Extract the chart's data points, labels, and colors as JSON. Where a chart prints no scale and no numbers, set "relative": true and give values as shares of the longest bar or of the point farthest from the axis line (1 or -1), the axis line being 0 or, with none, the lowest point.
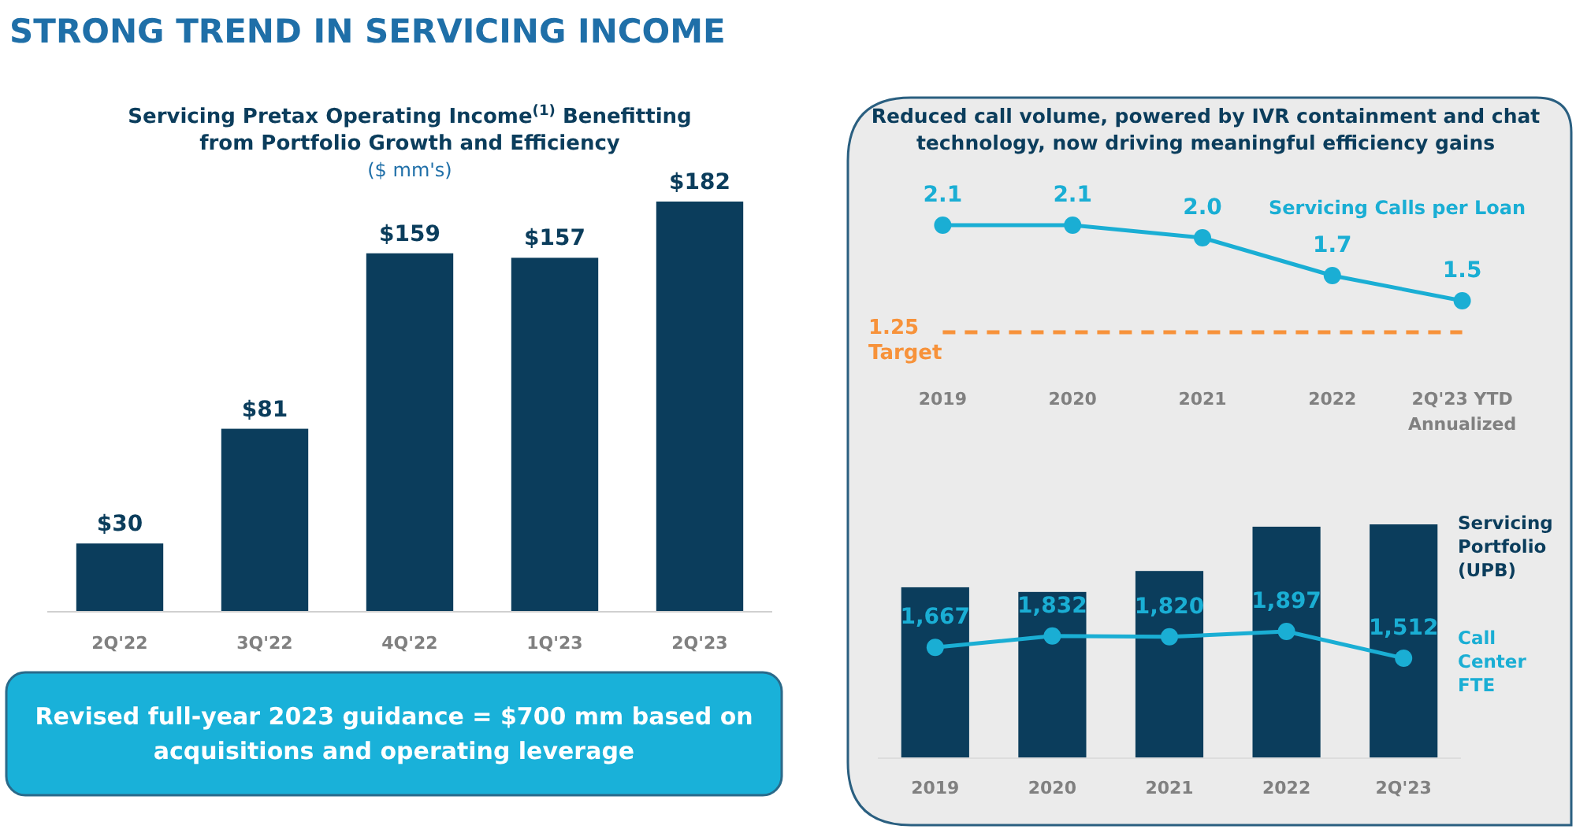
{
  "chart_data": [
    {
      "type": "bar",
      "title": "Servicing Pretax Operating Income$^{(1)}$ Benefitting from Portfolio Growth and Efficiency",
      "subtitle": "($ mm's)",
      "categories": [
        "2Q'22",
        "3Q'22",
        "4Q'22",
        "1Q'23",
        "2Q'23"
      ],
      "values": [
        30,
        81,
        159,
        157,
        182
      ],
      "value_labels": [
        "$30",
        "$81",
        "$159",
        "$157",
        "$182"
      ],
      "color": "#0b3d5c",
      "annotations": [
        "STRONG TREND IN SERVICING INCOME",
        "Revised full-year 2023 guidance = $700 mm based on acquisitions and operating leverage"
      ]
    },
    {
      "type": "line",
      "title": "Reduced call volume, powered by IVR containment and chat technology, now driving meaningful efficiency gains",
      "categories": [
        "2019",
        "2020",
        "2021",
        "2022",
        "2Q'23 YTD Annualized"
      ],
      "series": [
        {
          "name": "Servicing Calls per Loan",
          "color": "#1aaed4",
          "values": [
            2.1,
            2.1,
            2.0,
            1.7,
            1.5
          ],
          "value_labels": [
            "2.1",
            "2.1",
            "2.0",
            "1.7",
            "1.5"
          ]
        }
      ],
      "ref_lines": [
        {
          "axis": "y",
          "value": 1.25,
          "label": "1.25 Target",
          "color": "#f7923a",
          "line_style": "dashed"
        }
      ],
      "marker": "circle"
    },
    {
      "type": "bar",
      "relative": true,
      "categories": [
        "2019",
        "2020",
        "2021",
        "2022",
        "2Q'23"
      ],
      "series": [
        {
          "name": "Servicing Portfolio (UPB)",
          "color": "#0b3d5c",
          "values": [
            0.73,
            0.71,
            0.8,
            0.99,
            1
          ]
        }
      ]
    },
    {
      "type": "line",
      "series": [
        {
          "name": "Call Center FTE",
          "color": "#1aaed4",
          "values": [
            1667,
            1832,
            1820,
            1897,
            1512
          ],
          "value_labels": [
            "1,667",
            "1,832",
            "1,820",
            "1,897",
            "1,512"
          ]
        }
      ],
      "marker": "circle"
    }
  ]
}
